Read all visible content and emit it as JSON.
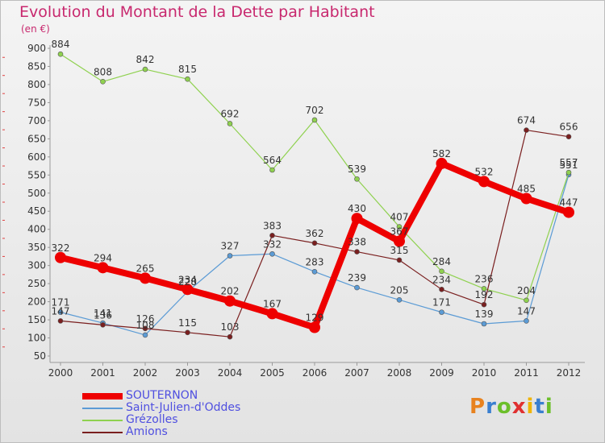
{
  "header": {
    "title": "Evolution du Montant de la Dette par Habitant",
    "unit": "(en €)"
  },
  "logo": {
    "text": "Proxiti",
    "letter_colors": [
      "#e8821e",
      "#3a7fd0",
      "#6cbf2a",
      "#e03030",
      "#f0b400",
      "#3a7fd0",
      "#6cbf2a"
    ]
  },
  "chart_data": {
    "type": "line",
    "title": "Evolution du Montant de la Dette par Habitant",
    "subtitle": "(en €)",
    "x": [
      "2000",
      "2001",
      "2002",
      "2003",
      "2004",
      "2005",
      "2006",
      "2007",
      "2008",
      "2009",
      "2010",
      "2011",
      "2012"
    ],
    "ylim": [
      50,
      900
    ],
    "yticks": [
      50,
      100,
      150,
      200,
      250,
      300,
      350,
      400,
      450,
      500,
      550,
      600,
      650,
      700,
      750,
      800,
      850,
      900
    ],
    "grid": false,
    "legend_position": "bottom-left",
    "series": [
      {
        "name": "SOUTERNON",
        "color": "#ee0000",
        "values": [
          322,
          294,
          265,
          234,
          202,
          167,
          129,
          430,
          367,
          582,
          532,
          485,
          447
        ],
        "labels": [
          "322",
          "294",
          "265",
          "234",
          "202",
          "167",
          "129",
          "430",
          "367",
          "582",
          "532",
          "485",
          "447"
        ]
      },
      {
        "name": "Saint-Julien-d'Oddes",
        "color": "#5b9bd5",
        "values": [
          171,
          141,
          108,
          228,
          327,
          332,
          283,
          239,
          205,
          171,
          139,
          147,
          551
        ],
        "labels": [
          "171",
          "141",
          "108",
          "228",
          "327",
          "332",
          "283",
          "239",
          "205",
          "171",
          "139",
          "147",
          "551"
        ]
      },
      {
        "name": "Grézolles",
        "color": "#8fd14f",
        "values": [
          884,
          808,
          842,
          815,
          692,
          564,
          702,
          539,
          407,
          284,
          236,
          204,
          557
        ],
        "labels": [
          "884",
          "808",
          "842",
          "815",
          "692",
          "564",
          "702",
          "539",
          "407",
          "284",
          "236",
          "204",
          "557"
        ]
      },
      {
        "name": "Amions",
        "color": "#7a1f1f",
        "values": [
          147,
          136,
          126,
          115,
          103,
          383,
          362,
          338,
          315,
          234,
          192,
          674,
          656
        ],
        "labels": [
          "147",
          "136",
          "126",
          "115",
          "103",
          "383",
          "362",
          "338",
          "315",
          "234",
          "192",
          "674",
          "656"
        ]
      }
    ]
  }
}
